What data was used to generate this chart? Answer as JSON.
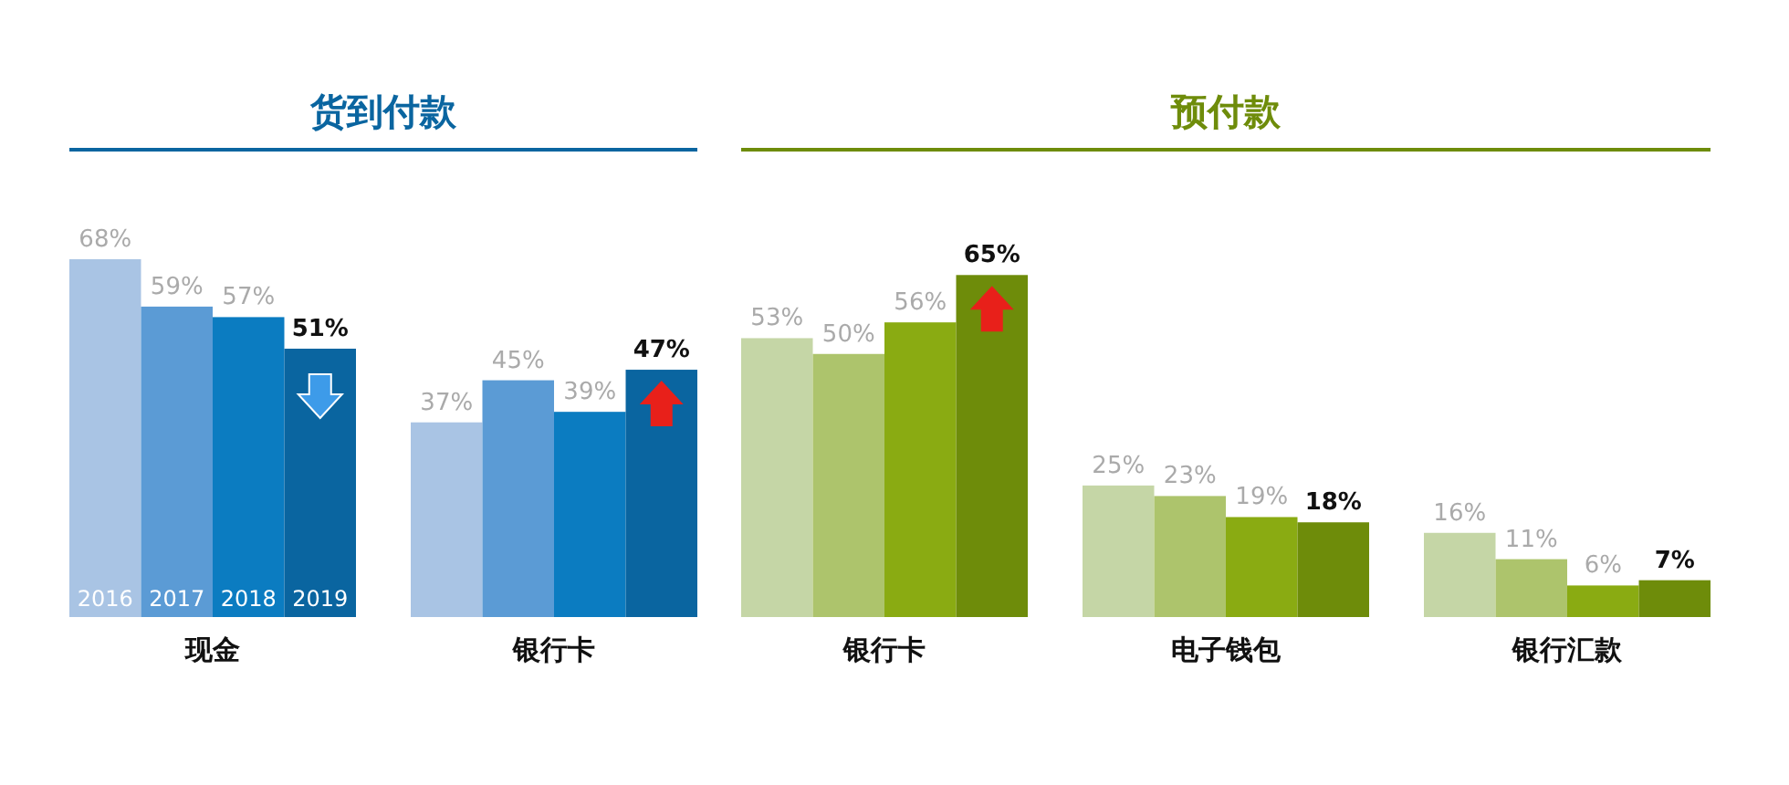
{
  "chart_data": [
    {
      "type": "bar",
      "title": "货到付款",
      "categories": [
        "现金",
        "银行卡"
      ],
      "series": [
        {
          "name": "2016",
          "color": "#a9c4e4",
          "values": [
            68,
            37
          ],
          "value_labels": [
            "68%",
            "37%"
          ]
        },
        {
          "name": "2017",
          "color": "#5b9bd5",
          "values": [
            59,
            45
          ],
          "value_labels": [
            "59%",
            "45%"
          ]
        },
        {
          "name": "2018",
          "color": "#0b7cc1",
          "values": [
            57,
            39
          ],
          "value_labels": [
            "57%",
            "39%"
          ]
        },
        {
          "name": "2019",
          "color": "#0a65a0",
          "values": [
            51,
            47
          ],
          "value_labels": [
            "51%",
            "47%"
          ]
        }
      ]
    },
    {
      "type": "bar",
      "title": "预付款",
      "categories": [
        "银行卡",
        "电子钱包",
        "银行汇款"
      ],
      "series": [
        {
          "color": "#c5d6a6",
          "values": [
            53,
            25,
            16
          ],
          "value_labels": [
            "53%",
            "25%",
            "16%"
          ]
        },
        {
          "color": "#adc46c",
          "values": [
            50,
            23,
            11
          ],
          "value_labels": [
            "50%",
            "23%",
            "11%"
          ]
        },
        {
          "color": "#8aab12",
          "values": [
            56,
            19,
            6
          ],
          "value_labels": [
            "56%",
            "19%",
            "6%"
          ]
        },
        {
          "color": "#6e8c0a",
          "values": [
            65,
            18,
            7
          ],
          "value_labels": [
            "65%",
            "18%",
            "7%"
          ]
        }
      ]
    }
  ]
}
